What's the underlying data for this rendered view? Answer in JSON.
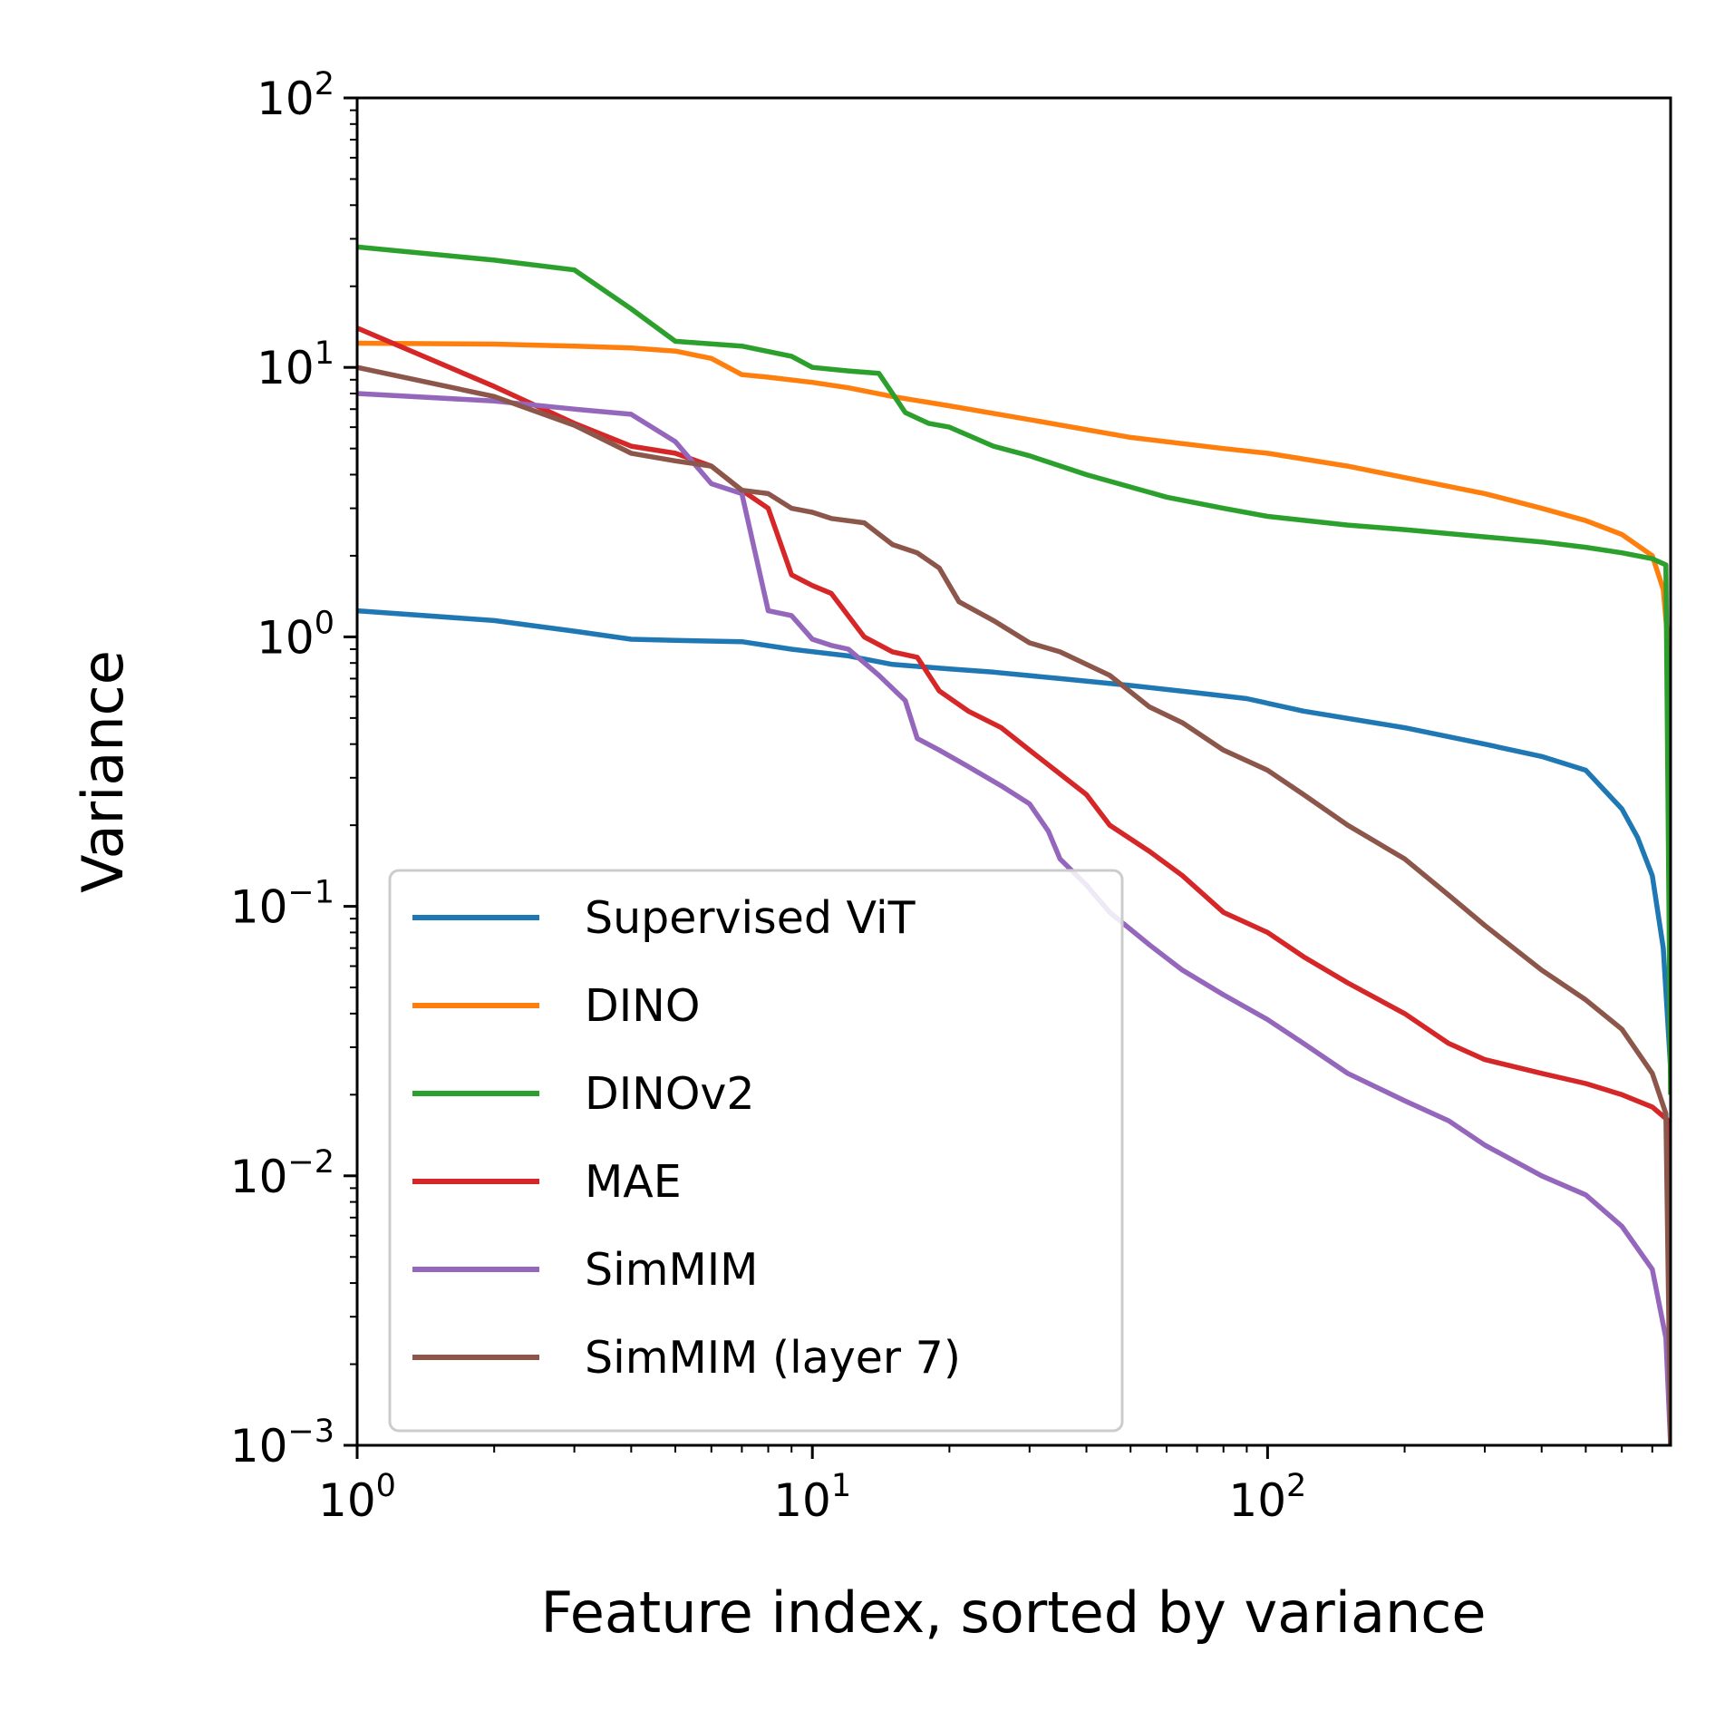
{
  "chart_data": {
    "type": "line",
    "title": "",
    "xlabel": "Feature index, sorted by variance",
    "ylabel": "Variance",
    "xscale": "log",
    "yscale": "log",
    "xlim": [
      1,
      768
    ],
    "ylim": [
      0.001,
      100
    ],
    "x_ticks": [
      {
        "base": "10",
        "exp": "0",
        "value": 1
      },
      {
        "base": "10",
        "exp": "1",
        "value": 10
      },
      {
        "base": "10",
        "exp": "2",
        "value": 100
      }
    ],
    "y_ticks": [
      {
        "base": "10",
        "exp": "−3",
        "value": 0.001
      },
      {
        "base": "10",
        "exp": "−2",
        "value": 0.01
      },
      {
        "base": "10",
        "exp": "−1",
        "value": 0.1
      },
      {
        "base": "10",
        "exp": "0",
        "value": 1
      },
      {
        "base": "10",
        "exp": "1",
        "value": 10
      },
      {
        "base": "10",
        "exp": "2",
        "value": 100
      }
    ],
    "legend_position": "lower-left",
    "grid": false,
    "series": [
      {
        "name": "Supervised ViT",
        "color": "#1f77b4",
        "x": [
          1,
          2,
          3,
          4,
          5,
          7,
          9,
          12,
          15,
          20,
          25,
          35,
          50,
          70,
          90,
          120,
          200,
          300,
          400,
          500,
          600,
          650,
          700,
          740,
          768
        ],
        "y": [
          1.25,
          1.15,
          1.05,
          0.98,
          0.97,
          0.96,
          0.9,
          0.85,
          0.79,
          0.76,
          0.74,
          0.7,
          0.66,
          0.62,
          0.59,
          0.53,
          0.46,
          0.4,
          0.36,
          0.32,
          0.23,
          0.18,
          0.13,
          0.07,
          0.025
        ]
      },
      {
        "name": "DINO",
        "color": "#ff7f0e",
        "x": [
          1,
          2,
          3,
          4,
          5,
          6,
          7,
          8,
          10,
          12,
          15,
          20,
          30,
          50,
          80,
          100,
          150,
          200,
          300,
          400,
          500,
          600,
          700,
          740,
          760,
          768
        ],
        "y": [
          12.3,
          12.2,
          12.0,
          11.8,
          11.5,
          10.8,
          9.4,
          9.2,
          8.8,
          8.4,
          7.8,
          7.2,
          6.4,
          5.5,
          5.0,
          4.8,
          4.3,
          3.9,
          3.4,
          3.0,
          2.7,
          2.4,
          2.0,
          1.5,
          0.9,
          0.5
        ]
      },
      {
        "name": "DINOv2",
        "color": "#2ca02c",
        "x": [
          1,
          2,
          3,
          4,
          5,
          7,
          9,
          10,
          12,
          14,
          15,
          16,
          18,
          20,
          25,
          30,
          40,
          50,
          60,
          80,
          100,
          150,
          200,
          300,
          400,
          500,
          600,
          700,
          750,
          768
        ],
        "y": [
          28,
          25,
          23,
          16.5,
          12.5,
          12.0,
          11.0,
          10.0,
          9.7,
          9.5,
          8.0,
          6.8,
          6.2,
          6.0,
          5.1,
          4.7,
          4.0,
          3.6,
          3.3,
          3.0,
          2.8,
          2.6,
          2.5,
          2.35,
          2.25,
          2.15,
          2.05,
          1.95,
          1.85,
          0.02
        ]
      },
      {
        "name": "MAE",
        "color": "#d62728",
        "x": [
          1,
          2,
          3,
          4,
          5,
          6,
          7,
          8,
          9,
          10,
          11,
          13,
          15,
          17,
          19,
          22,
          26,
          30,
          35,
          40,
          45,
          55,
          65,
          80,
          100,
          120,
          150,
          200,
          250,
          300,
          400,
          500,
          600,
          700,
          760,
          768
        ],
        "y": [
          14.0,
          8.5,
          6.2,
          5.1,
          4.8,
          4.3,
          3.5,
          3.0,
          1.7,
          1.55,
          1.45,
          1.0,
          0.88,
          0.84,
          0.63,
          0.53,
          0.46,
          0.38,
          0.31,
          0.26,
          0.2,
          0.16,
          0.13,
          0.095,
          0.08,
          0.065,
          0.052,
          0.04,
          0.031,
          0.027,
          0.024,
          0.022,
          0.02,
          0.018,
          0.016,
          0.001
        ]
      },
      {
        "name": "SimMIM",
        "color": "#9467bd",
        "x": [
          1,
          2,
          3,
          4,
          5,
          6,
          7,
          8,
          9,
          10,
          11,
          12,
          14,
          16,
          17,
          19,
          22,
          26,
          30,
          33,
          35,
          40,
          45,
          55,
          65,
          80,
          100,
          120,
          150,
          200,
          250,
          300,
          400,
          500,
          600,
          700,
          750,
          768
        ],
        "y": [
          8.0,
          7.5,
          7.0,
          6.7,
          5.3,
          3.7,
          3.4,
          1.25,
          1.2,
          0.98,
          0.93,
          0.9,
          0.72,
          0.58,
          0.42,
          0.38,
          0.33,
          0.28,
          0.24,
          0.19,
          0.15,
          0.12,
          0.095,
          0.072,
          0.058,
          0.047,
          0.038,
          0.031,
          0.024,
          0.019,
          0.016,
          0.013,
          0.01,
          0.0085,
          0.0065,
          0.0045,
          0.0025,
          0.001
        ]
      },
      {
        "name": "SimMIM (layer 7)",
        "color": "#8c564b",
        "x": [
          1,
          2,
          3,
          4,
          5,
          6,
          7,
          8,
          9,
          10,
          11,
          13,
          15,
          17,
          19,
          21,
          25,
          30,
          35,
          45,
          55,
          65,
          80,
          100,
          120,
          150,
          200,
          250,
          300,
          400,
          500,
          600,
          700,
          750,
          768
        ],
        "y": [
          10.0,
          7.8,
          6.1,
          4.8,
          4.5,
          4.3,
          3.5,
          3.4,
          3.0,
          2.9,
          2.75,
          2.65,
          2.2,
          2.05,
          1.8,
          1.35,
          1.15,
          0.95,
          0.88,
          0.72,
          0.55,
          0.48,
          0.38,
          0.32,
          0.26,
          0.2,
          0.15,
          0.11,
          0.085,
          0.058,
          0.045,
          0.035,
          0.024,
          0.017,
          0.001
        ]
      }
    ]
  }
}
